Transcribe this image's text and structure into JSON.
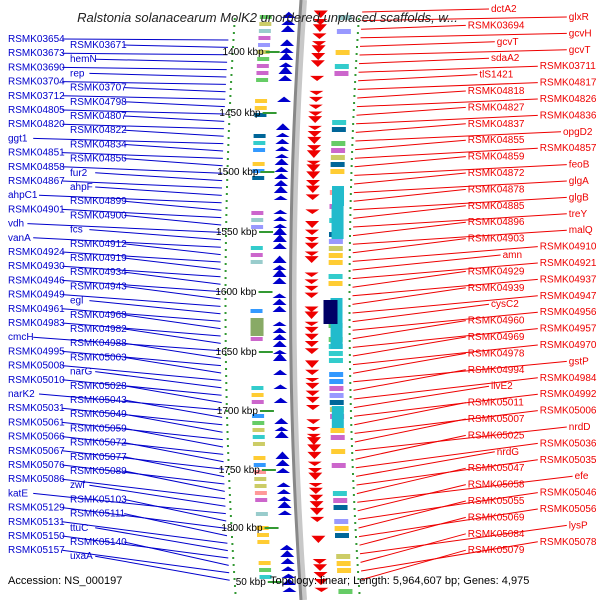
{
  "title": "Ralstonia solanacearum MolK2 unordered unplaced scaffolds, w...",
  "footer": {
    "accession": "Accession: NS_000197",
    "summary": "Topology: linear; Length: 5,964,607 bp; Genes: 4,975"
  },
  "colors": {
    "left_strand": "#0000cc",
    "right_strand": "#ee0000",
    "backbone": "#888888",
    "tick": "#339933"
  },
  "ticks": [
    "1400 kbp",
    "1450 kbp",
    "1500 kbp",
    "1550 kbp",
    "1600 kbp",
    "1650 kbp",
    "1700 kbp",
    "1750 kbp",
    "1800 kbp",
    "50 kbp"
  ],
  "left_labels": [
    "RSMK03654",
    "RSMK03671",
    "RSMK03673",
    "hemN",
    "RSMK03690",
    "rep",
    "RSMK03704",
    "RSMK03707",
    "RSMK03712",
    "RSMK04798",
    "RSMK04805",
    "RSMK04807",
    "RSMK04820",
    "RSMK04822",
    "ggt1",
    "RSMK04834",
    "RSMK04851",
    "RSMK04856",
    "RSMK04858",
    "fur2",
    "RSMK04867",
    "ahpF",
    "ahpC1",
    "RSMK04899",
    "RSMK04901",
    "RSMK04900",
    "vdh",
    "fcs",
    "vanA",
    "RSMK04912",
    "RSMK04924",
    "RSMK04919",
    "RSMK04930",
    "RSMK04934",
    "RSMK04946",
    "RSMK04943",
    "RSMK04949",
    "egl",
    "RSMK04961",
    "RSMK04968",
    "RSMK04983",
    "RSMK04982",
    "cmcH",
    "RSMK04988",
    "RSMK04995",
    "RSMK05003",
    "RSMK05008",
    "narG",
    "RSMK05010",
    "RSMK05028",
    "narK2",
    "RSMK05043",
    "RSMK05031",
    "RSMK05049",
    "RSMK05061",
    "RSMK05059",
    "RSMK05066",
    "RSMK05072",
    "RSMK05067",
    "RSMK05077",
    "RSMK05076",
    "RSMK05089",
    "RSMK05086",
    "zwf",
    "katE",
    "RSMK05103",
    "RSMK05129",
    "RSMK05111",
    "RSMK05131",
    "ttuC",
    "RSMK05150",
    "RSMK05140",
    "RSMK05157",
    "uxaA"
  ],
  "right_labels": [
    "dctA2",
    "glxR",
    "RSMK03694",
    "gcvH",
    "gcvT",
    "gcvT",
    "sdaA2",
    "RSMK03711",
    "tlS1421",
    "RSMK04817",
    "RSMK04818",
    "RSMK04826",
    "RSMK04827",
    "RSMK04836",
    "RSMK04837",
    "opgD2",
    "RSMK04855",
    "RSMK04857",
    "RSMK04859",
    "feoB",
    "RSMK04872",
    "glgA",
    "RSMK04878",
    "glgB",
    "RSMK04885",
    "treY",
    "RSMK04896",
    "malQ",
    "RSMK04903",
    "RSMK04910",
    "amn",
    "RSMK04921",
    "RSMK04929",
    "RSMK04937",
    "RSMK04939",
    "RSMK04947",
    "cysC2",
    "RSMK04956",
    "RSMK04960",
    "RSMK04957",
    "RSMK04969",
    "RSMK04970",
    "RSMK04978",
    "gstP",
    "RSMK04994",
    "RSMK04984",
    "ilvE2",
    "RSMK04992",
    "RSMK05011",
    "RSMK05006",
    "RSMK05007",
    "nrdD",
    "RSMK05025",
    "RSMK05036",
    "nrdG",
    "RSMK05035",
    "RSMK05047",
    "efe",
    "RSMK05058",
    "RSMK05046",
    "RSMK05055",
    "RSMK05056",
    "RSMK05069",
    "lysP",
    "RSMK05084",
    "RSMK05078",
    "RSMK05079"
  ]
}
